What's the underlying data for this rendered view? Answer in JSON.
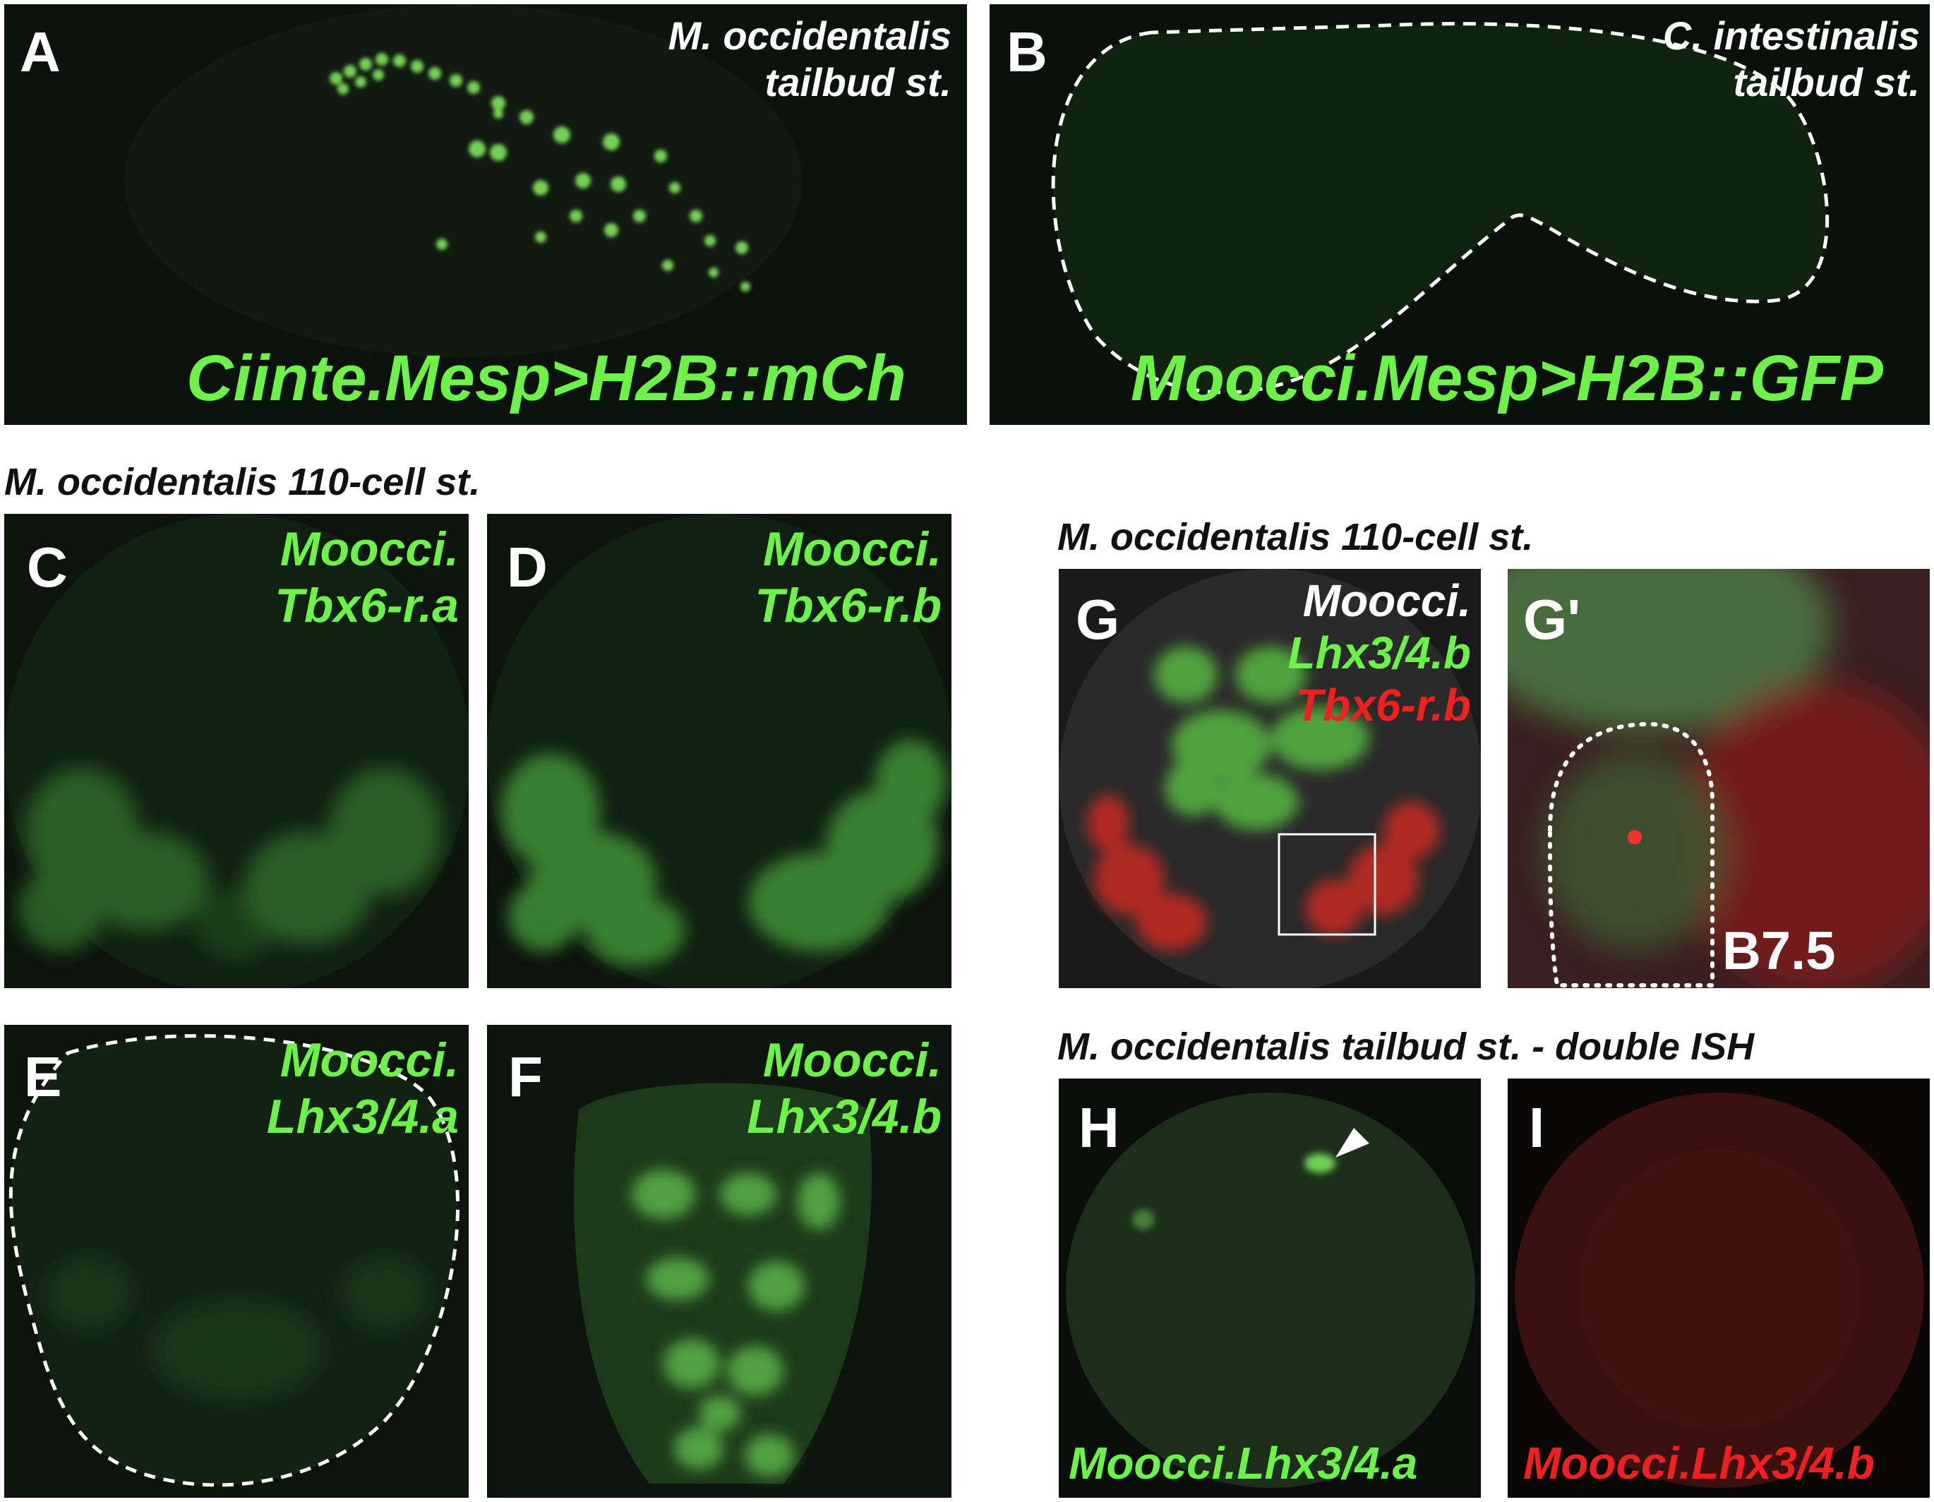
{
  "headers": {
    "mid_left": "M. occidentalis 110-cell st.",
    "mid_right": "M. occidentalis 110-cell st.",
    "bottom_right": "M. occidentalis tailbud st. - double ISH"
  },
  "panels": {
    "A": {
      "letter": "A",
      "stage_line1": "M. occidentalis",
      "stage_line2": "tailbud st.",
      "construct": "Ciinte.Mesp>H2B::mCh"
    },
    "B": {
      "letter": "B",
      "stage_line1": "C. intestinalis",
      "stage_line2": "tailbud st.",
      "construct": "Moocci.Mesp>H2B::GFP"
    },
    "C": {
      "letter": "C",
      "gene_line1": "Moocci.",
      "gene_line2": "Tbx6-r.a"
    },
    "D": {
      "letter": "D",
      "gene_line1": "Moocci.",
      "gene_line2": "Tbx6-r.b"
    },
    "E": {
      "letter": "E",
      "gene_line1": "Moocci.",
      "gene_line2": "Lhx3/4.a"
    },
    "F": {
      "letter": "F",
      "gene_line1": "Moocci.",
      "gene_line2": "Lhx3/4.b"
    },
    "G": {
      "letter": "G",
      "gene_line1": "Moocci.",
      "gene_line2": "Lhx3/4.b",
      "gene_line3": "Tbx6-r.b"
    },
    "G2": {
      "letter": "G'",
      "cell_label": "B7.5"
    },
    "H": {
      "letter": "H",
      "gene": "Moocci.Lhx3/4.a"
    },
    "I": {
      "letter": "I",
      "gene": "Moocci.Lhx3/4.b"
    }
  },
  "colors": {
    "green_label": "#6ef24a",
    "red_label": "#ee2020",
    "white_label": "#ffffff"
  }
}
